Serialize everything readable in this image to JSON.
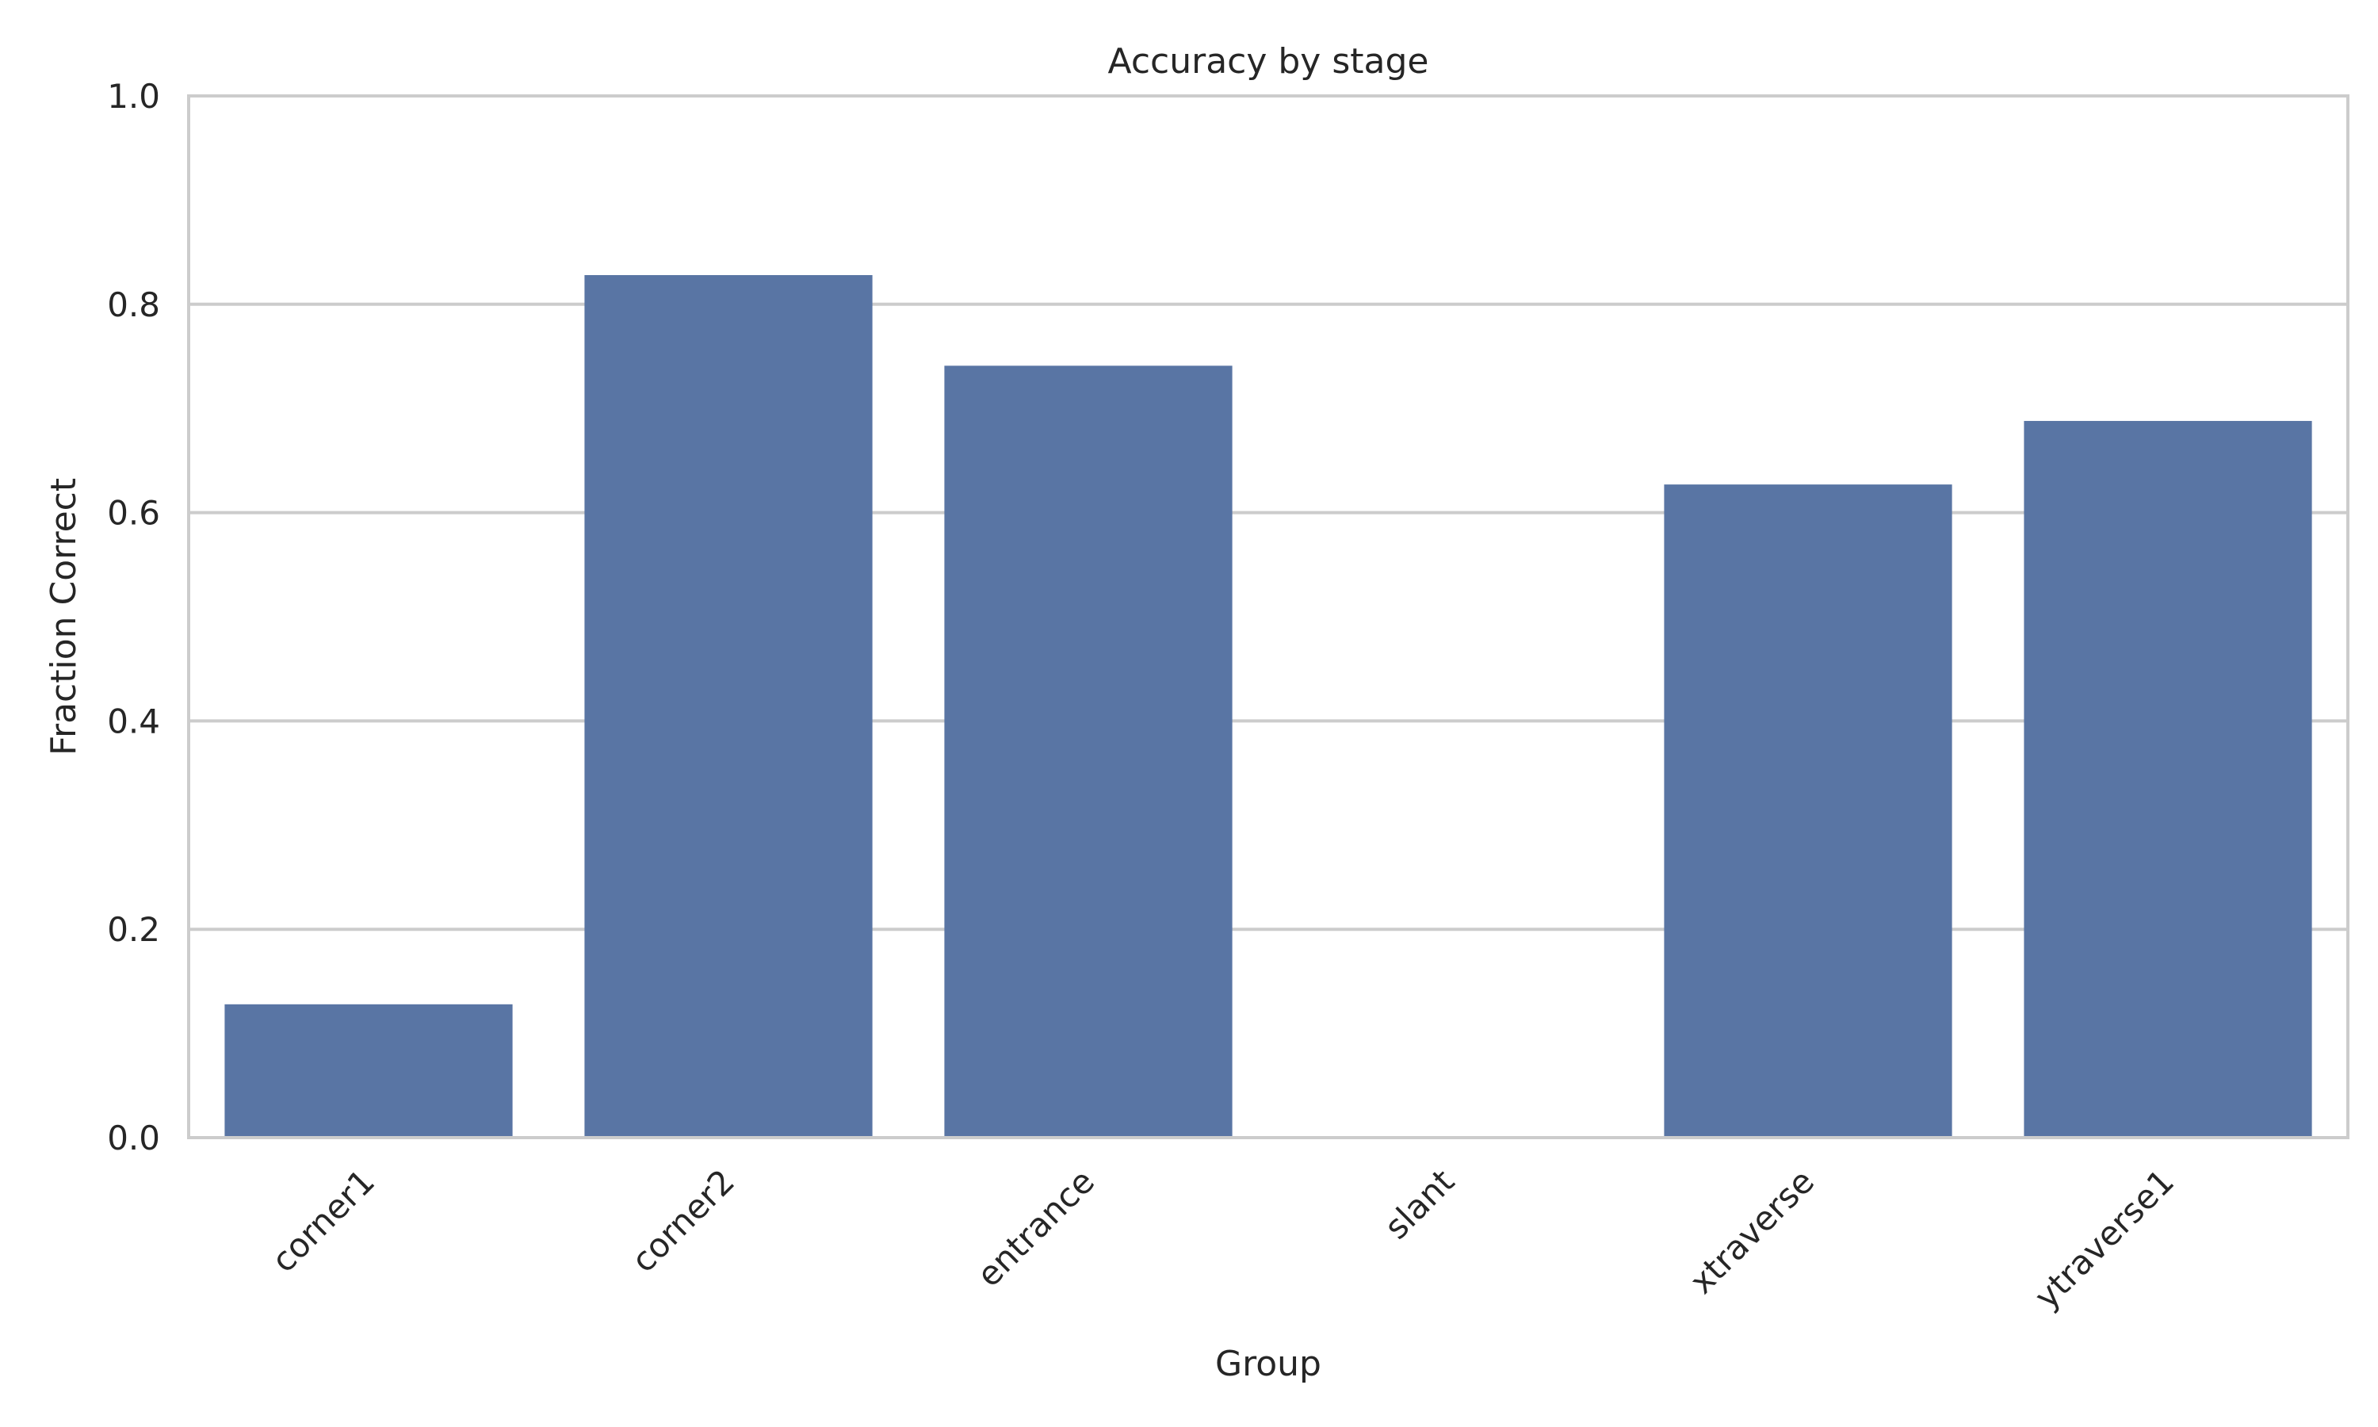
{
  "chart_data": {
    "type": "bar",
    "title": "Accuracy by stage",
    "xlabel": "Group",
    "ylabel": "Fraction Correct",
    "categories": [
      "corner1",
      "corner2",
      "entrance",
      "slant",
      "xtraverse",
      "ytraverse1"
    ],
    "values": [
      0.128,
      0.828,
      0.741,
      0.0,
      0.627,
      0.688
    ],
    "ylim": [
      0,
      1.0
    ],
    "yticks": [
      "0.0",
      "0.2",
      "0.4",
      "0.6",
      "0.8",
      "1.0"
    ],
    "grid": true,
    "legend": "none",
    "colors": {
      "bar": "#5975a4",
      "grid": "#cccccc",
      "axis": "#cccccc",
      "text": "#262626"
    }
  }
}
